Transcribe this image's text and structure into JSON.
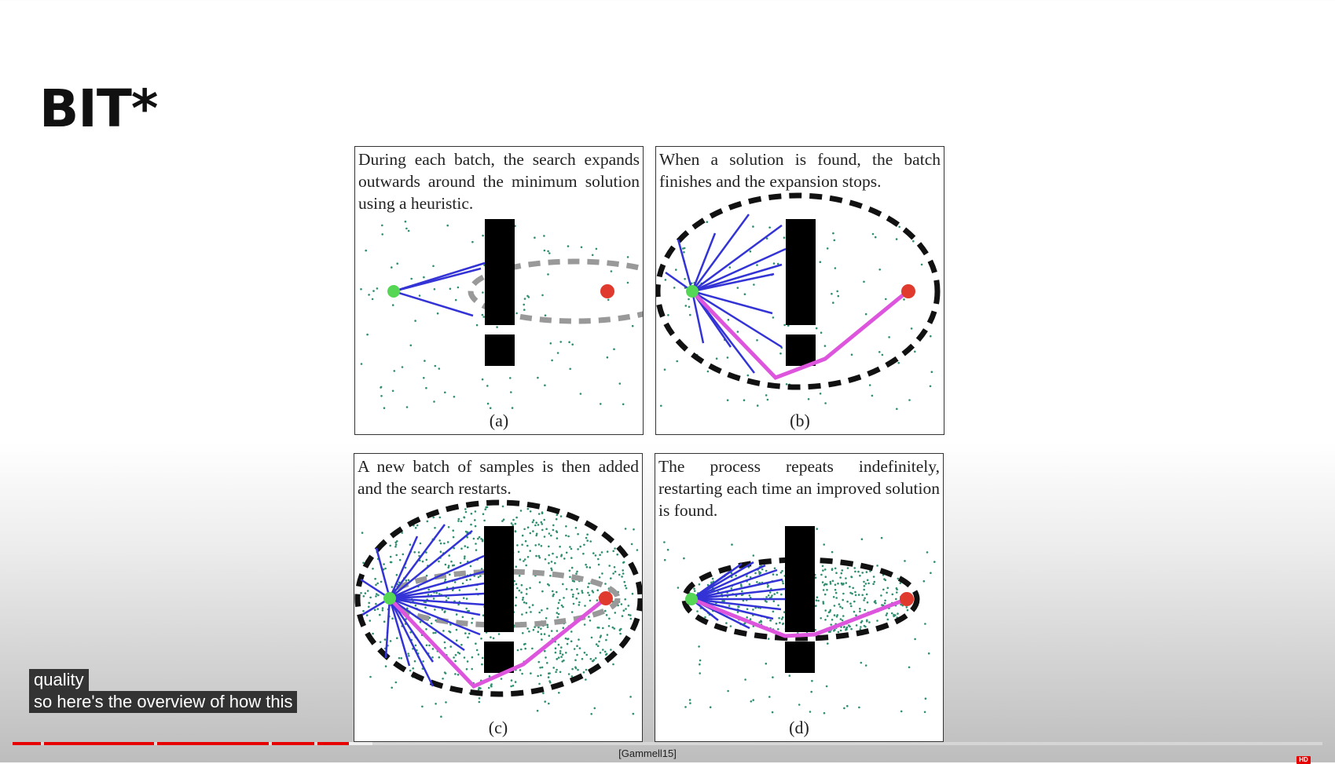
{
  "slide": {
    "title": "BIT*"
  },
  "figure": {
    "panels": [
      {
        "id": "a",
        "label": "(a)",
        "text": "During each batch, the search expands outwards around the minimum solution using a heuristic."
      },
      {
        "id": "b",
        "label": "(b)",
        "text": "When a solution is found, the batch finishes and the expansion stops."
      },
      {
        "id": "c",
        "label": "(c)",
        "text": "A new batch of samples is then added and the search restarts."
      },
      {
        "id": "d",
        "label": "(d)",
        "text": "The process repeats indefinitely, restarting each time an improved solution is found."
      }
    ],
    "colors": {
      "start": "#55d655",
      "goal": "#e03a2f",
      "edge": "#3333d6",
      "path": "#dd55dd",
      "obstacle": "#000000",
      "sample": "#2f8f6f",
      "ellipse_old": "#999999",
      "ellipse_new": "#111111"
    }
  },
  "captions": {
    "lines": [
      "quality",
      "so here's the overview of how this"
    ]
  },
  "citation": "[Gammell15]",
  "player": {
    "progress_fraction": 0.257,
    "buffer_fraction": 0.275
  }
}
